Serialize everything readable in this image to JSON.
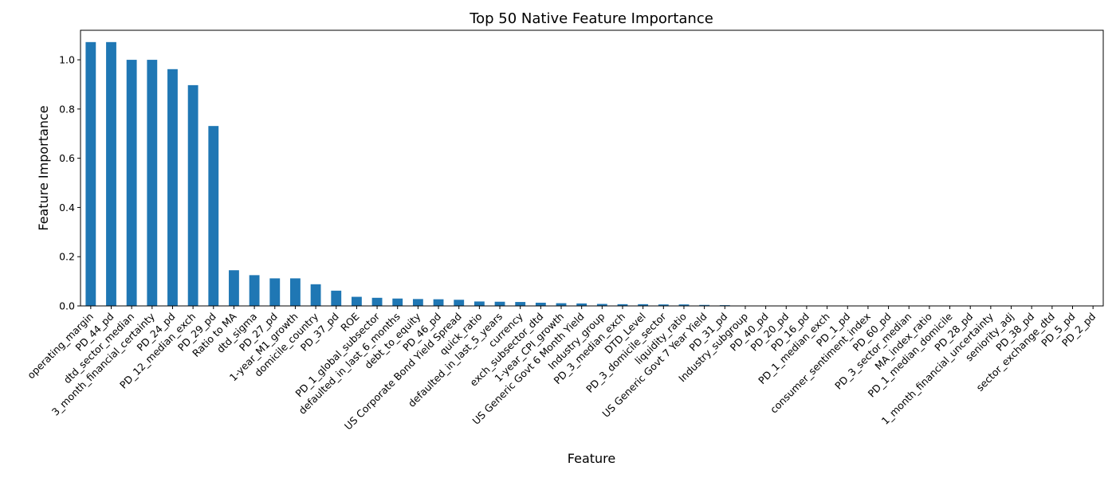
{
  "chart_data": {
    "type": "bar",
    "title": "Top 50 Native Feature Importance",
    "xlabel": "Feature",
    "ylabel": "Feature Importance",
    "ylim": [
      0,
      1.12
    ],
    "yticks": [
      "0.0",
      "0.2",
      "0.4",
      "0.6",
      "0.8",
      "1.0"
    ],
    "bar_color": "#1f77b4",
    "grid": false,
    "legend": "none",
    "categories": [
      "operating_margin",
      "PD_44_pd",
      "dtd_sector_median",
      "3_month_financial_certainty",
      "PD_24_pd",
      "PD_12_median_exch",
      "PD_29_pd",
      "Ratio to MA",
      "dtd_sigma",
      "PD_27_pd",
      "1-year_M1_growth",
      "domicile_country",
      "PD_37_pd",
      "ROE",
      "PD_1_global_subsector",
      "defaulted_in_last_6_months",
      "debt_to_equity",
      "PD_46_pd",
      "US Corporate Bond Yield Spread",
      "quick_ratio",
      "defaulted_in_last_5_years",
      "currency",
      "exch_subsector_dtd",
      "1-year_CPI_growth",
      "US Generic Govt 6 Month Yield",
      "Industry_group",
      "PD_3_median_exch",
      "DTD_Level",
      "PD_3_domicile_sector",
      "liquidity_ratio",
      "US Generic Govt 7 Year Yield",
      "PD_31_pd",
      "Industry_subgroup",
      "PD_40_pd",
      "PD_20_pd",
      "PD_16_pd",
      "PD_1_median_exch",
      "PD_1_pd",
      "consumer_sentiment_index",
      "PD_60_pd",
      "PD_3_sector_median",
      "MA_index_ratio",
      "PD_1_median_domicile",
      "PD_28_pd",
      "1_month_financial_uncertainty",
      "seniority_adj",
      "PD_38_pd",
      "sector_exchange_dtd",
      "PD_5_pd",
      "PD_2_pd"
    ],
    "values": [
      1.072,
      1.072,
      1.0,
      1.0,
      0.962,
      0.897,
      0.731,
      0.145,
      0.125,
      0.112,
      0.112,
      0.088,
      0.062,
      0.037,
      0.033,
      0.03,
      0.028,
      0.027,
      0.025,
      0.018,
      0.017,
      0.016,
      0.013,
      0.011,
      0.01,
      0.008,
      0.007,
      0.007,
      0.006,
      0.006,
      0.004,
      0.003,
      0.0,
      0.0,
      0.0,
      0.0,
      0.0,
      0.0,
      0.0,
      0.0,
      0.0,
      0.0,
      0.0,
      0.0,
      0.0,
      0.0,
      0.0,
      0.0,
      0.0,
      0.0
    ]
  }
}
